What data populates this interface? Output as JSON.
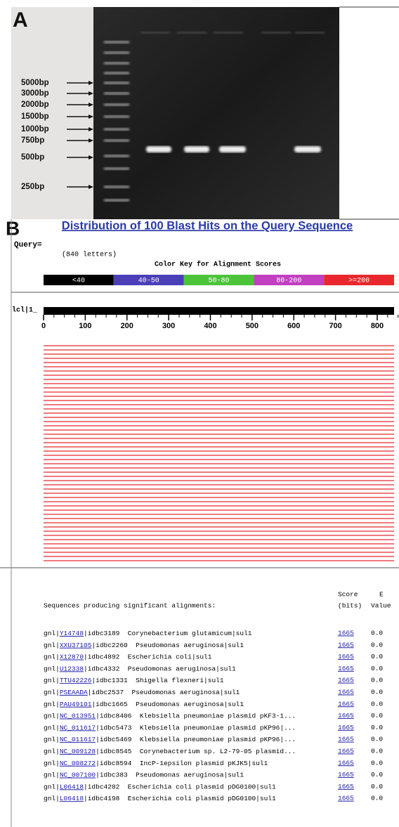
{
  "panel_a": {
    "label": "A",
    "markers": [
      "5000bp",
      "3000bp",
      "2000bp",
      "1500bp",
      "1000bp",
      "750bp",
      "500bp",
      "250bp"
    ]
  },
  "panel_b": {
    "label": "B",
    "title": "Distribution of 100 Blast Hits on the Query Sequence",
    "query_label": "Query=",
    "query_length": "(840 letters)",
    "color_key_title": "Color Key for Alignment Scores",
    "color_key": [
      {
        "label": "<40",
        "color": "#000000"
      },
      {
        "label": "40-50",
        "color": "#4b3fb8"
      },
      {
        "label": "50-80",
        "color": "#4cc43a"
      },
      {
        "label": "80-200",
        "color": "#c040c0"
      },
      {
        "label": ">=200",
        "color": "#e8282e"
      }
    ],
    "sequence_id": "lcl|1_",
    "ruler_ticks": [
      0,
      100,
      200,
      300,
      400,
      500,
      600,
      700,
      800
    ],
    "table": {
      "caption": "Sequences producing significant alignments:",
      "score_header": [
        "Score",
        "(bits)"
      ],
      "evalue_header": [
        "E",
        "Value"
      ],
      "rows": [
        {
          "db": "gnl|",
          "accession": "Y14748",
          "description": "|idbc3189  Corynebacterium glutamicum|sul1",
          "score": 1665,
          "evalue": "0.0"
        },
        {
          "db": "gnl|",
          "accession": "XXU37105",
          "description": "|idbc2260  Pseudomonas aeruginosa|sul1",
          "score": 1665,
          "evalue": "0.0"
        },
        {
          "db": "gnl|",
          "accession": "X12870",
          "description": "|idbc4892  Escherichia coli|sul1",
          "score": 1665,
          "evalue": "0.0"
        },
        {
          "db": "gnl|",
          "accession": "U12338",
          "description": "|idbc4332  Pseudomonas aeruginosa|sul1",
          "score": 1665,
          "evalue": "0.0"
        },
        {
          "db": "gnl|",
          "accession": "TTU42226",
          "description": "|idbc1331  Shigella flexneri|sul1",
          "score": 1665,
          "evalue": "0.0"
        },
        {
          "db": "gnl|",
          "accession": "PSEAADA",
          "description": "|idbc2537  Pseudomonas aeruginosa|sul1",
          "score": 1665,
          "evalue": "0.0"
        },
        {
          "db": "gnl|",
          "accession": "PAU49101",
          "description": "|idbc1665  Pseudomonas aeruginosa|sul1",
          "score": 1665,
          "evalue": "0.0"
        },
        {
          "db": "gnl|",
          "accession": "NC_013951",
          "description": "|idbc8406  Klebsiella pneumoniae plasmid pKF3-1...",
          "score": 1665,
          "evalue": "0.0"
        },
        {
          "db": "gnl|",
          "accession": "NC_011617",
          "description": "|idbc5473  Klebsiella pneumoniae plasmid pKP96|...",
          "score": 1665,
          "evalue": "0.0"
        },
        {
          "db": "gnl|",
          "accession": "NC_011617",
          "description": "|idbc5469  Klebsiella pneumoniae plasmid pKP96|...",
          "score": 1665,
          "evalue": "0.0"
        },
        {
          "db": "gnl|",
          "accession": "NC_009128",
          "description": "|idbc8545  Corynebacterium sp. L2-79-05 plasmid...",
          "score": 1665,
          "evalue": "0.0"
        },
        {
          "db": "gnl|",
          "accession": "NC_008272",
          "description": "|idbc8594  IncP-1epsilon plasmid pKJK5|sul1",
          "score": 1665,
          "evalue": "0.0"
        },
        {
          "db": "gnl|",
          "accession": "NC_007100",
          "description": "|idbc383  Pseudomonas aeruginosa|sul1",
          "score": 1665,
          "evalue": "0.0"
        },
        {
          "db": "gnl|",
          "accession": "L06418",
          "description": "|idbc4202  Escherichia coli plasmid pDG0100|sul1",
          "score": 1665,
          "evalue": "0.0"
        },
        {
          "db": "gnl|",
          "accession": "L06418",
          "description": "|idbc4198  Escherichia coli plasmid pDG0100|sul1",
          "score": 1665,
          "evalue": "0.0"
        }
      ]
    }
  }
}
